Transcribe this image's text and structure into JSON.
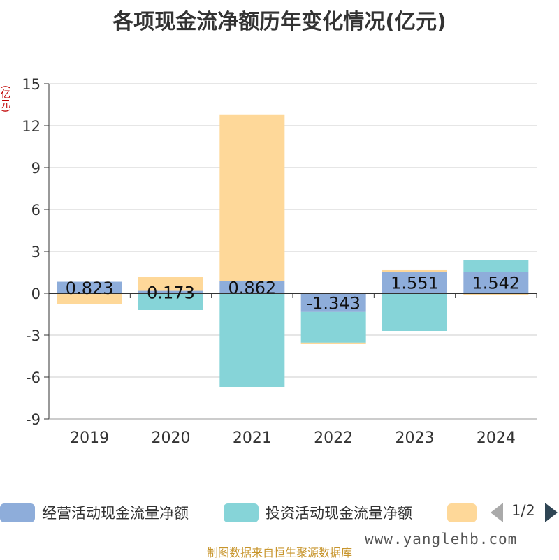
{
  "title": "各项现金流净额历年变化情况(亿元)",
  "unit_label": "(亿元)",
  "chart_data": {
    "type": "bar",
    "stacked": true,
    "categories": [
      "2019",
      "2020",
      "2021",
      "2022",
      "2023",
      "2024"
    ],
    "series": [
      {
        "name": "经营活动现金流量净额",
        "color": "#8eadda",
        "values": [
          0.823,
          0.173,
          0.862,
          -1.343,
          1.551,
          1.542
        ]
      },
      {
        "name": "投资活动现金流量净额",
        "color": "#86d4d8",
        "values": [
          0,
          -1.2,
          -6.7,
          -2.2,
          -2.7,
          0.85
        ]
      },
      {
        "name": "",
        "color": "#fed899",
        "values": [
          -0.8,
          1.0,
          11.95,
          -0.1,
          0.15,
          -0.15
        ]
      }
    ],
    "data_labels": [
      "0.823",
      "0.173",
      "0.862",
      "-1.343",
      "1.551",
      "1.542"
    ],
    "ylim": [
      -9,
      15
    ],
    "yticks": [
      15,
      12,
      9,
      6,
      3,
      0,
      -3,
      -6,
      -9
    ],
    "grid": true,
    "legend_position": "bottom"
  },
  "legend": {
    "items": [
      {
        "label": "经营活动现金流量净额",
        "color": "#8eadda"
      },
      {
        "label": "投资活动现金流量净额",
        "color": "#86d4d8"
      },
      {
        "label": "",
        "color": "#fed899"
      }
    ],
    "page_text": "1/2"
  },
  "watermark": "www.yanglehb.com",
  "source": "制图数据来自恒生聚源数据库"
}
